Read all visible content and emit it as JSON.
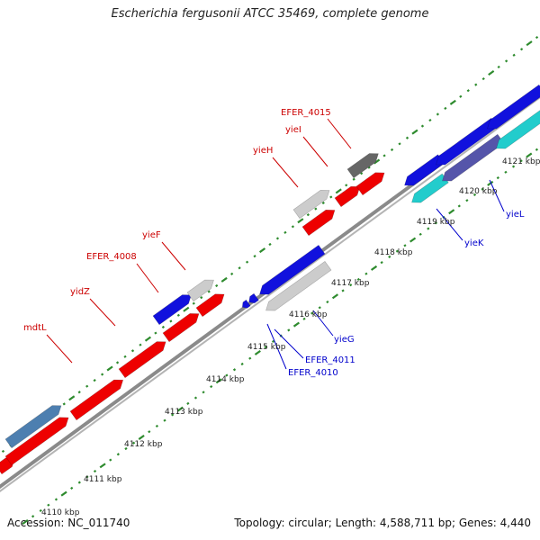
{
  "title": "Escherichia fergusonii ATCC 35469, complete genome",
  "accession": "Accession: NC_011740",
  "summary": "Topology: circular; Length: 4,588,711 bp; Genes: 4,440",
  "colors": {
    "backbone": "#8a8a8a",
    "tick": "#2e8b2e",
    "red": "#ee0000",
    "blue": "#1111dd",
    "light_gray": "#cccccc",
    "dark_gray": "#666666",
    "cyan": "#22cccc",
    "slate": "#5555aa",
    "steel": "#4d7fb0",
    "label_red": "#cc0000",
    "label_blue": "#0000cc"
  },
  "scale_labels": [
    "4110 kbp",
    "4111 kbp",
    "4112 kbp",
    "4113 kbp",
    "4114 kbp",
    "4115 kbp",
    "4116 kbp",
    "4117 kbp",
    "4118 kbp",
    "4119 kbp",
    "4120 kbp",
    "4121 kbp"
  ],
  "gene_labels": {
    "forward": [
      "mdtL",
      "yidZ",
      "EFER_4008",
      "yieF",
      "yieH",
      "yieI",
      "EFER_4015"
    ],
    "reverse": [
      "EFER_4010",
      "EFER_4011",
      "yieG",
      "yieK",
      "yieL"
    ]
  }
}
